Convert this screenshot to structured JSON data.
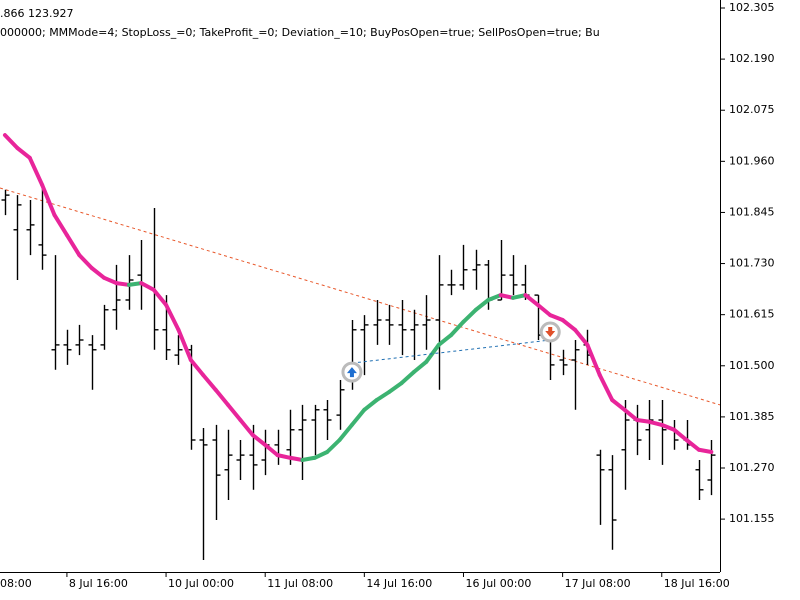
{
  "chart_data": {
    "type": "ohlc",
    "header": [
      ".866 123.927",
      "000000; MMMode=4; StopLoss_=0; TakeProfit_=0; Deviation_=10; BuyPosOpen=true; SellPosOpen=true; Bu"
    ],
    "open": [
      101.873,
      101.806,
      101.806,
      101.772,
      101.536,
      101.547,
      101.547,
      101.547,
      101.547,
      101.626,
      101.648,
      101.704,
      101.671,
      101.581,
      101.524,
      101.536,
      101.333,
      101.333,
      101.266,
      101.288,
      101.299,
      101.288,
      101.322,
      101.311,
      101.356,
      101.378,
      101.401,
      101.389,
      101.468,
      101.581,
      101.592,
      101.603,
      101.592,
      101.581,
      101.592,
      101.603,
      101.682,
      101.682,
      101.716,
      101.727,
      101.648,
      101.704,
      101.682,
      101.659,
      101.569,
      101.513,
      101.513,
      101.547,
      101.299,
      101.266,
      101.311,
      101.378,
      101.356,
      101.378,
      101.356,
      101.333,
      101.266,
      101.243
    ],
    "high": [
      101.896,
      101.884,
      101.873,
      101.907,
      101.749,
      101.581,
      101.592,
      101.569,
      101.637,
      101.727,
      101.749,
      101.783,
      101.855,
      101.659,
      101.569,
      101.547,
      101.36,
      101.367,
      101.356,
      101.333,
      101.367,
      101.356,
      101.356,
      101.401,
      101.412,
      101.412,
      101.423,
      101.468,
      101.603,
      101.614,
      101.648,
      101.637,
      101.648,
      101.626,
      101.659,
      101.749,
      101.716,
      101.772,
      101.761,
      101.738,
      101.783,
      101.749,
      101.727,
      101.659,
      101.581,
      101.536,
      101.558,
      101.581,
      101.311,
      101.299,
      101.423,
      101.412,
      101.423,
      101.423,
      101.378,
      101.378,
      101.288,
      101.333
    ],
    "low": [
      101.839,
      101.693,
      101.749,
      101.716,
      101.491,
      101.502,
      101.524,
      101.446,
      101.536,
      101.581,
      101.626,
      101.626,
      101.536,
      101.513,
      101.502,
      101.311,
      101.063,
      101.153,
      101.198,
      101.243,
      101.221,
      101.254,
      101.277,
      101.277,
      101.243,
      101.299,
      101.333,
      101.356,
      101.446,
      101.479,
      101.547,
      101.547,
      101.524,
      101.513,
      101.536,
      101.446,
      101.659,
      101.671,
      101.671,
      101.626,
      101.648,
      101.659,
      101.648,
      101.558,
      101.468,
      101.479,
      101.401,
      101.502,
      101.142,
      101.086,
      101.221,
      101.299,
      101.288,
      101.277,
      101.311,
      101.311,
      101.198,
      101.209
    ],
    "close": [
      101.884,
      101.862,
      101.817,
      101.749,
      101.547,
      101.536,
      101.558,
      101.536,
      101.626,
      101.648,
      101.693,
      101.682,
      101.581,
      101.536,
      101.536,
      101.333,
      101.322,
      101.254,
      101.299,
      101.299,
      101.277,
      101.322,
      101.299,
      101.356,
      101.378,
      101.401,
      101.378,
      101.446,
      101.581,
      101.592,
      101.603,
      101.592,
      101.581,
      101.592,
      101.603,
      101.682,
      101.682,
      101.716,
      101.727,
      101.648,
      101.704,
      101.682,
      101.659,
      101.569,
      101.502,
      101.502,
      101.536,
      101.524,
      101.266,
      101.153,
      101.378,
      101.333,
      101.378,
      101.356,
      101.333,
      101.322,
      101.221,
      101.299
    ],
    "bar_color": "#000000",
    "ma": {
      "color_up": "#3cb371",
      "color_down": "#e8259a",
      "values": [
        102.019,
        101.99,
        101.968,
        101.907,
        101.839,
        101.794,
        101.749,
        101.72,
        101.698,
        101.686,
        101.682,
        101.686,
        101.671,
        101.637,
        101.581,
        101.513,
        101.479,
        101.446,
        101.412,
        101.378,
        101.344,
        101.322,
        101.299,
        101.293,
        101.288,
        101.293,
        101.306,
        101.333,
        101.367,
        101.401,
        101.423,
        101.441,
        101.461,
        101.486,
        101.509,
        101.547,
        101.569,
        101.599,
        101.626,
        101.648,
        101.659,
        101.653,
        101.659,
        101.637,
        101.614,
        101.603,
        101.581,
        101.547,
        101.479,
        101.423,
        101.401,
        101.378,
        101.374,
        101.367,
        101.356,
        101.333,
        101.311,
        101.306
      ]
    },
    "trendline": {
      "color": "#e8572a",
      "start": [
        -0.4,
        101.9
      ],
      "end": [
        57.7,
        101.412
      ]
    },
    "trade_line_color": "#1f6fb2",
    "buy": {
      "x": 28,
      "y": 101.506,
      "color": "#1f6fd0"
    },
    "sell": {
      "x": 44,
      "y": 101.558,
      "color": "#e0502a"
    },
    "xlim": [
      -0.4,
      57.7
    ],
    "ylim": [
      101.036,
      102.323
    ],
    "xticks": [
      {
        "value": -3,
        "label": "08:00"
      },
      {
        "value": 5,
        "label": "8 Jul 16:00"
      },
      {
        "value": 13,
        "label": "10 Jul 00:00"
      },
      {
        "value": 21,
        "label": "11 Jul 08:00"
      },
      {
        "value": 29,
        "label": "14 Jul 16:00"
      },
      {
        "value": 37,
        "label": "16 Jul 00:00"
      },
      {
        "value": 45,
        "label": "17 Jul 08:00"
      },
      {
        "value": 53,
        "label": "18 Jul 16:00"
      }
    ],
    "yticks": [
      102.305,
      {
        "value": 102.19,
        "label": "102.190"
      },
      102.075,
      {
        "value": 101.96,
        "label": "101.960"
      },
      101.845,
      {
        "value": 101.73,
        "label": "101.730"
      },
      101.615,
      {
        "value": 101.5,
        "label": "101.500"
      },
      101.385,
      {
        "value": 101.27,
        "label": "101.270"
      },
      101.155
    ]
  }
}
